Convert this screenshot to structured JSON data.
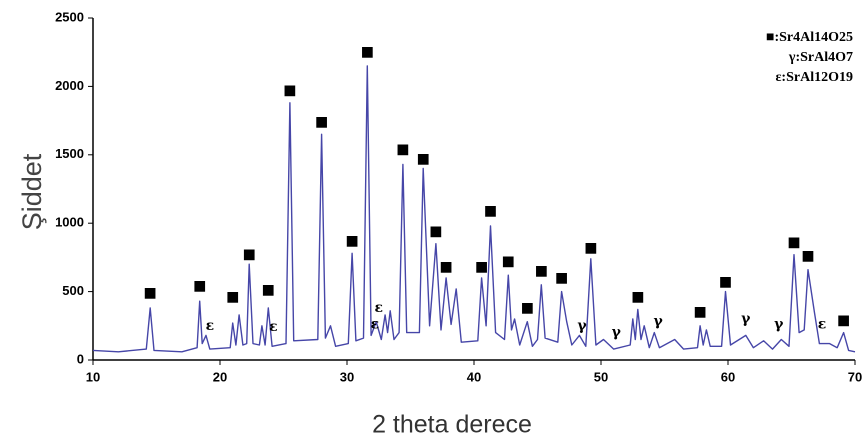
{
  "chart_data": {
    "type": "line",
    "xlabel": "2 theta derece",
    "ylabel": "Şiddet",
    "legend_text": [
      "■:Sr4Al14O25",
      "γ:SrAl4O7",
      "ε:SrAl12O19"
    ],
    "color": "#4646a8",
    "xlim": [
      10,
      70
    ],
    "xticks": [
      10,
      20,
      30,
      40,
      50,
      60,
      70
    ],
    "ylim": [
      0,
      2500
    ],
    "yticks": [
      0,
      500,
      1000,
      1500,
      2000,
      2500
    ],
    "grid": false,
    "x": [
      10,
      12,
      14.2,
      14.5,
      14.8,
      17,
      18.2,
      18.4,
      18.6,
      18.9,
      19.2,
      20.8,
      21.0,
      21.25,
      21.5,
      21.8,
      22.1,
      22.3,
      22.6,
      23.1,
      23.3,
      23.55,
      23.8,
      24.1,
      25.2,
      25.5,
      25.8,
      27.7,
      28.0,
      28.3,
      28.7,
      29.1,
      30.1,
      30.4,
      30.7,
      31.3,
      31.6,
      31.9,
      32.3,
      32.7,
      33.0,
      33.2,
      33.4,
      33.7,
      34.1,
      34.4,
      34.7,
      35.7,
      36.0,
      36.5,
      37.0,
      37.4,
      37.8,
      38.2,
      38.6,
      39.0,
      40.3,
      40.6,
      40.95,
      41.3,
      41.7,
      42.4,
      42.7,
      42.95,
      43.2,
      43.6,
      44.2,
      44.6,
      45.0,
      45.3,
      45.6,
      46.6,
      46.9,
      47.3,
      47.7,
      48.3,
      48.8,
      49.2,
      49.6,
      50.2,
      51,
      52.3,
      52.5,
      52.7,
      52.9,
      53.15,
      53.4,
      53.8,
      54.2,
      54.6,
      55.8,
      56.5,
      57.6,
      57.8,
      58.05,
      58.3,
      58.6,
      59.5,
      59.8,
      60.2,
      61.4,
      62,
      62.8,
      63.5,
      64.2,
      64.8,
      65.2,
      65.6,
      66.0,
      66.3,
      66.8,
      67.2,
      68.0,
      68.6,
      69.1,
      69.5,
      70
    ],
    "values": [
      70,
      60,
      80,
      380,
      70,
      60,
      90,
      430,
      120,
      180,
      80,
      90,
      270,
      110,
      330,
      110,
      120,
      700,
      120,
      110,
      250,
      110,
      380,
      100,
      120,
      1880,
      140,
      150,
      1650,
      160,
      250,
      100,
      120,
      780,
      140,
      160,
      2150,
      180,
      280,
      150,
      330,
      200,
      360,
      150,
      200,
      1430,
      200,
      200,
      1400,
      250,
      850,
      220,
      600,
      260,
      520,
      130,
      140,
      600,
      250,
      980,
      200,
      150,
      620,
      220,
      300,
      110,
      280,
      100,
      150,
      550,
      160,
      130,
      500,
      280,
      110,
      180,
      100,
      740,
      110,
      150,
      80,
      110,
      300,
      150,
      370,
      150,
      250,
      90,
      200,
      90,
      150,
      80,
      90,
      250,
      110,
      220,
      100,
      100,
      500,
      110,
      180,
      90,
      140,
      80,
      150,
      100,
      770,
      200,
      220,
      660,
      350,
      120,
      120,
      90,
      200,
      70,
      60
    ],
    "annotations": [
      {
        "text": "■",
        "x": 14.5,
        "y": 490
      },
      {
        "text": "■",
        "x": 18.4,
        "y": 540
      },
      {
        "text": "■",
        "x": 21.0,
        "y": 460
      },
      {
        "text": "■",
        "x": 22.3,
        "y": 770
      },
      {
        "text": "■",
        "x": 23.8,
        "y": 510
      },
      {
        "text": "■",
        "x": 25.5,
        "y": 1970
      },
      {
        "text": "■",
        "x": 28.0,
        "y": 1740
      },
      {
        "text": "■",
        "x": 30.4,
        "y": 870
      },
      {
        "text": "■",
        "x": 31.6,
        "y": 2250
      },
      {
        "text": "■",
        "x": 34.4,
        "y": 1540
      },
      {
        "text": "■",
        "x": 36.0,
        "y": 1470
      },
      {
        "text": "■",
        "x": 37.0,
        "y": 940
      },
      {
        "text": "■",
        "x": 37.8,
        "y": 680
      },
      {
        "text": "■",
        "x": 40.6,
        "y": 680
      },
      {
        "text": "■",
        "x": 41.3,
        "y": 1090
      },
      {
        "text": "■",
        "x": 42.7,
        "y": 720
      },
      {
        "text": "■",
        "x": 44.2,
        "y": 380
      },
      {
        "text": "■",
        "x": 45.3,
        "y": 650
      },
      {
        "text": "■",
        "x": 46.9,
        "y": 600
      },
      {
        "text": "■",
        "x": 49.2,
        "y": 820
      },
      {
        "text": "■",
        "x": 52.9,
        "y": 460
      },
      {
        "text": "■",
        "x": 57.8,
        "y": 350
      },
      {
        "text": "■",
        "x": 59.8,
        "y": 570
      },
      {
        "text": "■",
        "x": 65.2,
        "y": 860
      },
      {
        "text": "■",
        "x": 66.3,
        "y": 760
      },
      {
        "text": "■",
        "x": 69.1,
        "y": 290
      },
      {
        "text": "ε",
        "x": 19.2,
        "y": 250
      },
      {
        "text": "ε",
        "x": 24.2,
        "y": 240
      },
      {
        "text": "ε",
        "x": 32.2,
        "y": 260
      },
      {
        "text": "ε",
        "x": 32.5,
        "y": 380
      },
      {
        "text": "ε",
        "x": 67.4,
        "y": 260
      },
      {
        "text": "γ",
        "x": 48.5,
        "y": 250
      },
      {
        "text": "γ",
        "x": 51.2,
        "y": 200
      },
      {
        "text": "γ",
        "x": 54.5,
        "y": 280
      },
      {
        "text": "γ",
        "x": 61.4,
        "y": 300
      },
      {
        "text": "γ",
        "x": 64.0,
        "y": 260
      }
    ]
  }
}
